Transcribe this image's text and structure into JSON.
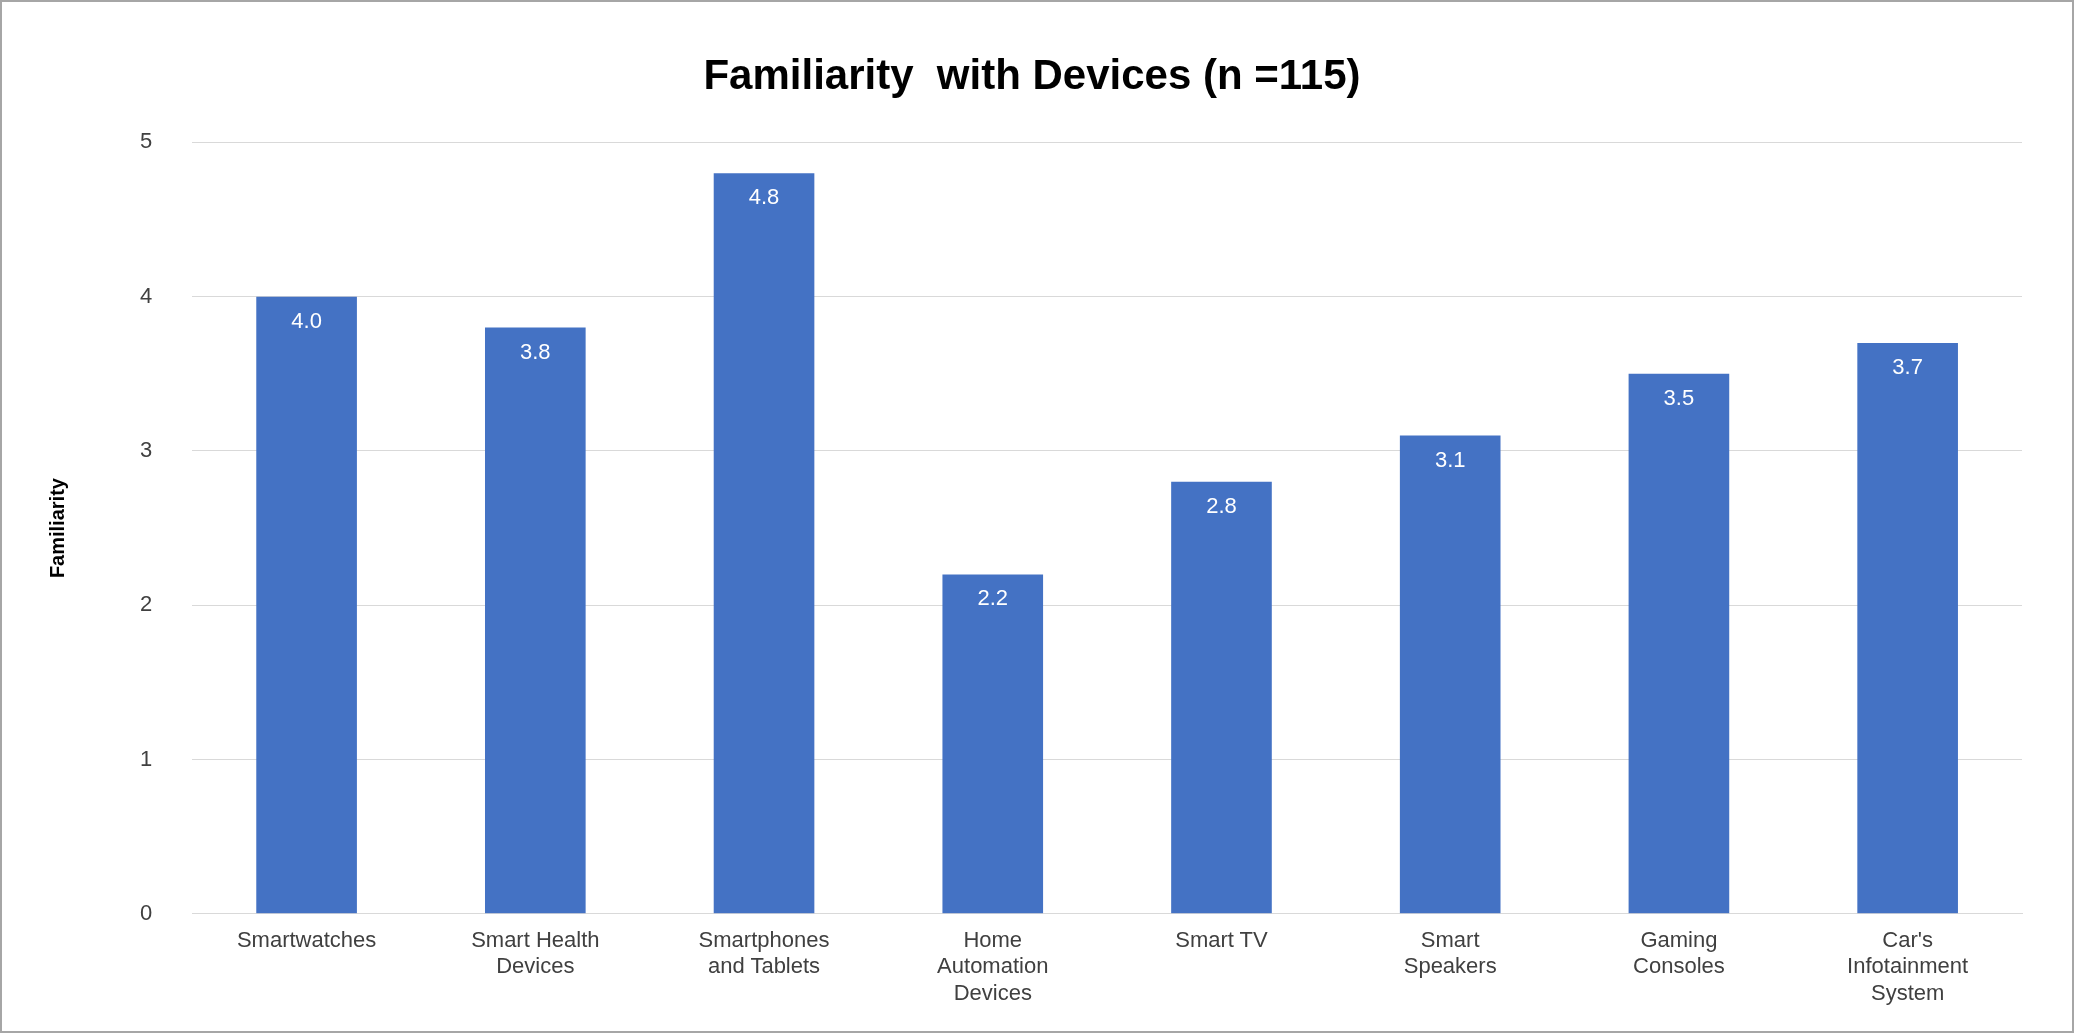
{
  "chart_data": {
    "type": "bar",
    "title": "Familiarity  with Devices (n =115)",
    "ylabel": "Familiarity",
    "categories": [
      "Smartwatches",
      "Smart Health Devices",
      "Smartphones and Tablets",
      "Home Automation Devices",
      "Smart TV",
      "Smart Speakers",
      "Gaming Consoles",
      "Car's Infotainment System"
    ],
    "values": [
      4.0,
      3.8,
      4.8,
      2.2,
      2.8,
      3.1,
      3.5,
      3.7
    ],
    "value_labels": [
      "4.0",
      "3.8",
      "4.8",
      "2.2",
      "2.8",
      "3.1",
      "3.5",
      "3.7"
    ],
    "color": "#4472c4",
    "ylim": [
      0,
      5
    ],
    "yticks": [
      0,
      1,
      2,
      3,
      4,
      5
    ],
    "grid": "y",
    "legend": false
  }
}
